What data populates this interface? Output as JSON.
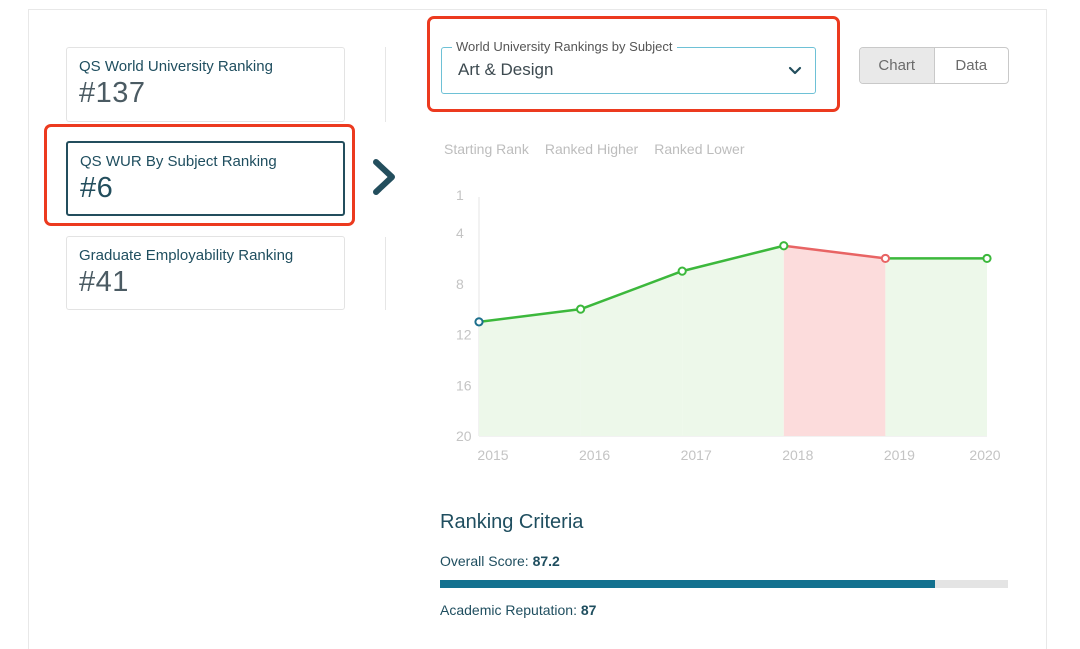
{
  "rankings": [
    {
      "label": "QS World University Ranking",
      "value": "#137"
    },
    {
      "label": "QS WUR By Subject Ranking",
      "value": "#6"
    },
    {
      "label": "Graduate Employability Ranking",
      "value": "#41"
    }
  ],
  "active_ranking_index": 1,
  "subject_select": {
    "legend": "World University Rankings by Subject",
    "selected": "Art & Design"
  },
  "view_toggle": {
    "chart_label": "Chart",
    "data_label": "Data",
    "active": "Chart"
  },
  "chart_legend": [
    "Starting Rank",
    "Ranked Higher",
    "Ranked Lower"
  ],
  "colors": {
    "higher": "#3cb83c",
    "lower": "#e86464",
    "start": "#1c6f8c",
    "accent": "#234e5d"
  },
  "chart_data": {
    "type": "line",
    "x": [
      "2015",
      "2016",
      "2017",
      "2018",
      "2019",
      "2020"
    ],
    "y": [
      11,
      10,
      7,
      5,
      6,
      6
    ],
    "y_ticks": [
      "1",
      "4",
      "8",
      "12",
      "16",
      "20"
    ],
    "y_reversed": true,
    "ylim": [
      1,
      20
    ]
  },
  "criteria": {
    "title": "Ranking Criteria",
    "items": [
      {
        "label": "Overall Score: ",
        "value": "87.2",
        "score": 87.2
      },
      {
        "label": "Academic Reputation: ",
        "value": "87"
      }
    ]
  }
}
